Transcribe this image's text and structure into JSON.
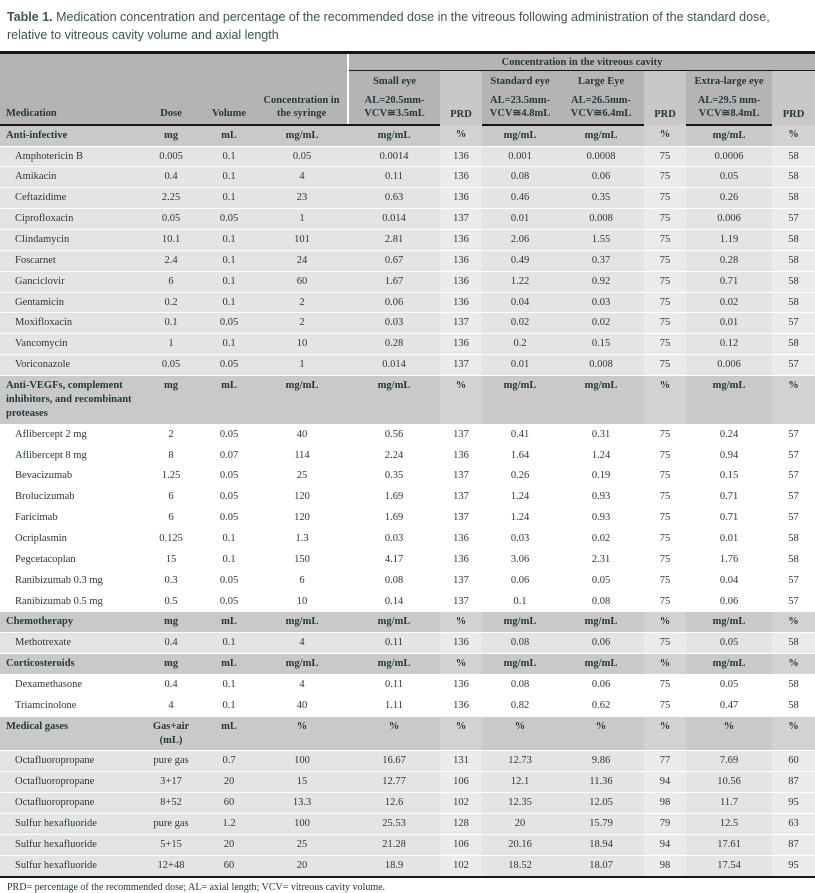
{
  "caption": {
    "label": "Table 1.",
    "text": " Medication concentration and percentage of the recommended dose in the vitreous following administration of the standard dose, relative to vitreous cavity volume and axial length"
  },
  "colors": {
    "header_bg": "#b4b4b4",
    "header_prd_bg": "#c8c8c8",
    "section_row_bg": "#c9c9c9",
    "shaded_row_bg": "#e4e4e4",
    "caption_color": "#3d5358",
    "rule_color": "#161616"
  },
  "table": {
    "header": {
      "span_label": "Concentration in the vitreous cavity",
      "left_columns": [
        "Medication",
        "Dose",
        "Volume",
        "Concentration in the syringe"
      ],
      "eye_groups": [
        "Small eye",
        "Standard eye",
        "Large Eye",
        "Extra-large eye"
      ],
      "al_columns": [
        {
          "line1": "AL=20.5mm-",
          "line2": "VCV≅3.5mL"
        },
        {
          "line1": "AL=23.5mm-",
          "line2": "VCV≅4.8mL"
        },
        {
          "line1": "AL=26.5mm-",
          "line2": "VCV≅6.4mL"
        },
        {
          "line1": "AL=29.5 mm-",
          "line2": "VCV≅8.4mL"
        }
      ],
      "prd_label": "PRD"
    },
    "sections": [
      {
        "name": "Anti-infective",
        "shaded": true,
        "units": [
          "mg",
          "mL",
          "mg/mL",
          "mg/mL",
          "%",
          "mg/mL",
          "mg/mL",
          "%",
          "mg/mL",
          "%"
        ],
        "rows": [
          [
            "Amphotericin B",
            "0.005",
            "0.1",
            "0.05",
            "0.0014",
            "136",
            "0.001",
            "0.0008",
            "75",
            "0.0006",
            "58"
          ],
          [
            "Amikacin",
            "0.4",
            "0.1",
            "4",
            "0.11",
            "136",
            "0.08",
            "0.06",
            "75",
            "0.05",
            "58"
          ],
          [
            "Ceftazidime",
            "2.25",
            "0.1",
            "23",
            "0.63",
            "136",
            "0.46",
            "0.35",
            "75",
            "0.26",
            "58"
          ],
          [
            "Ciprofloxacin",
            "0.05",
            "0.05",
            "1",
            "0.014",
            "137",
            "0.01",
            "0.008",
            "75",
            "0.006",
            "57"
          ],
          [
            "Clindamycin",
            "10.1",
            "0.1",
            "101",
            "2.81",
            "136",
            "2.06",
            "1.55",
            "75",
            "1.19",
            "58"
          ],
          [
            "Foscarnet",
            "2.4",
            "0.1",
            "24",
            "0.67",
            "136",
            "0.49",
            "0.37",
            "75",
            "0.28",
            "58"
          ],
          [
            "Ganciclovir",
            "6",
            "0.1",
            "60",
            "1.67",
            "136",
            "1.22",
            "0.92",
            "75",
            "0.71",
            "58"
          ],
          [
            "Gentamicin",
            "0.2",
            "0.1",
            "2",
            "0.06",
            "136",
            "0.04",
            "0.03",
            "75",
            "0.02",
            "58"
          ],
          [
            "Moxifloxacin",
            "0.1",
            "0.05",
            "2",
            "0.03",
            "137",
            "0.02",
            "0.02",
            "75",
            "0.01",
            "57"
          ],
          [
            "Vancomycin",
            "1",
            "0.1",
            "10",
            "0.28",
            "136",
            "0.2",
            "0.15",
            "75",
            "0.12",
            "58"
          ],
          [
            "Voriconazole",
            "0.05",
            "0.05",
            "1",
            "0.014",
            "137",
            "0.01",
            "0.008",
            "75",
            "0.006",
            "57"
          ]
        ]
      },
      {
        "name": "Anti-VEGFs, complement inhibitors, and recombinant proteases",
        "shaded": false,
        "units": [
          "mg",
          "mL",
          "mg/mL",
          "mg/mL",
          "%",
          "mg/mL",
          "mg/mL",
          "%",
          "mg/mL",
          "%"
        ],
        "rows": [
          [
            "Aflibercept 2 mg",
            "2",
            "0.05",
            "40",
            "0.56",
            "137",
            "0.41",
            "0.31",
            "75",
            "0.24",
            "57"
          ],
          [
            "Aflibercept 8 mg",
            "8",
            "0.07",
            "114",
            "2.24",
            "136",
            "1.64",
            "1.24",
            "75",
            "0.94",
            "57"
          ],
          [
            "Bevacizumab",
            "1.25",
            "0.05",
            "25",
            "0.35",
            "137",
            "0.26",
            "0.19",
            "75",
            "0.15",
            "57"
          ],
          [
            "Brolucizumab",
            "6",
            "0.05",
            "120",
            "1.69",
            "137",
            "1.24",
            "0.93",
            "75",
            "0.71",
            "57"
          ],
          [
            "Faricimab",
            "6",
            "0.05",
            "120",
            "1.69",
            "137",
            "1.24",
            "0.93",
            "75",
            "0.71",
            "57"
          ],
          [
            "Ocriplasmin",
            "0.125",
            "0.1",
            "1.3",
            "0.03",
            "136",
            "0.03",
            "0.02",
            "75",
            "0.01",
            "58"
          ],
          [
            "Pegcetacoplan",
            "15",
            "0.1",
            "150",
            "4.17",
            "136",
            "3.06",
            "2.31",
            "75",
            "1.76",
            "58"
          ],
          [
            "Ranibizumab 0.3 mg",
            "0.3",
            "0.05",
            "6",
            "0.08",
            "137",
            "0.06",
            "0.05",
            "75",
            "0.04",
            "57"
          ],
          [
            "Ranibizumab 0.5 mg",
            "0.5",
            "0.05",
            "10",
            "0.14",
            "137",
            "0.1",
            "0.08",
            "75",
            "0.06",
            "57"
          ]
        ]
      },
      {
        "name": "Chemotherapy",
        "shaded": true,
        "units": [
          "mg",
          "mL",
          "mg/mL",
          "mg/mL",
          "%",
          "mg/mL",
          "mg/mL",
          "%",
          "mg/mL",
          "%"
        ],
        "rows": [
          [
            "Methotrexate",
            "0.4",
            "0.1",
            "4",
            "0.11",
            "136",
            "0.08",
            "0.06",
            "75",
            "0.05",
            "58"
          ]
        ]
      },
      {
        "name": "Corticosteroids",
        "shaded": false,
        "units": [
          "mg",
          "mL",
          "mg/mL",
          "mg/mL",
          "%",
          "mg/mL",
          "mg/mL",
          "%",
          "mg/mL",
          "%"
        ],
        "rows": [
          [
            "Dexamethasone",
            "0.4",
            "0.1",
            "4",
            "0.11",
            "136",
            "0.08",
            "0.06",
            "75",
            "0.05",
            "58"
          ],
          [
            "Triamcinolone",
            "4",
            "0.1",
            "40",
            "1.11",
            "136",
            "0.82",
            "0.62",
            "75",
            "0.47",
            "58"
          ]
        ]
      },
      {
        "name": "Medical gases",
        "shaded": true,
        "units": [
          "Gas+air (mL)",
          "mL",
          "%",
          "%",
          "%",
          "%",
          "%",
          "%",
          "%",
          "%"
        ],
        "rows": [
          [
            "Octafluoropropane",
            "pure gas",
            "0.7",
            "100",
            "16.67",
            "131",
            "12.73",
            "9.86",
            "77",
            "7.69",
            "60"
          ],
          [
            "Octafluoropropane",
            "3+17",
            "20",
            "15",
            "12.77",
            "106",
            "12.1",
            "11.36",
            "94",
            "10.56",
            "87"
          ],
          [
            "Octafluoropropane",
            "8+52",
            "60",
            "13.3",
            "12.6",
            "102",
            "12.35",
            "12.05",
            "98",
            "11.7",
            "95"
          ],
          [
            "Sulfur hexafluoride",
            "pure gas",
            "1.2",
            "100",
            "25.53",
            "128",
            "20",
            "15.79",
            "79",
            "12.5",
            "63"
          ],
          [
            "Sulfur hexafluoride",
            "5+15",
            "20",
            "25",
            "21.28",
            "106",
            "20.16",
            "18.94",
            "94",
            "17.61",
            "87"
          ],
          [
            "Sulfur hexafluoride",
            "12+48",
            "60",
            "20",
            "18.9",
            "102",
            "18.52",
            "18.07",
            "98",
            "17.54",
            "95"
          ]
        ]
      }
    ]
  },
  "footnote": "PRD= percentage of the recommended dose; AL= axial length; VCV= vitreous cavity volume."
}
